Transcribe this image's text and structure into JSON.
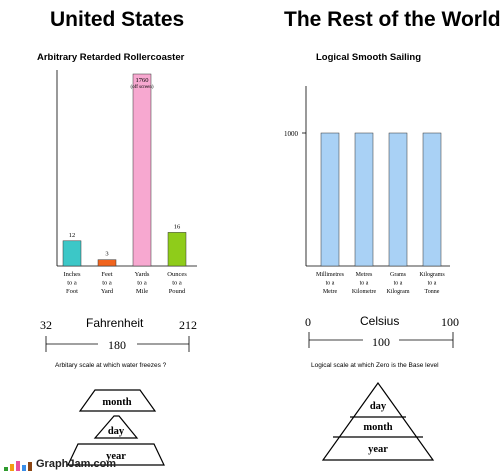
{
  "left": {
    "heading": "United States",
    "scale": {
      "name": "Fahrenheit",
      "low": "32",
      "high": "212",
      "range": "180",
      "caption": "Arbitary scale at which water freezes ?"
    },
    "pyramid": [
      "month",
      "day",
      "year"
    ]
  },
  "right": {
    "heading": "The Rest of the World",
    "scale": {
      "name": "Celsius",
      "low": "0",
      "high": "100",
      "range": "100",
      "caption": "Logical scale at which Zero is the Base level"
    },
    "pyramid": [
      "day",
      "month",
      "year"
    ]
  },
  "footer": {
    "site": "GraphJam.com",
    "colors": [
      "#2e9b2e",
      "#f39c12",
      "#e84d9b",
      "#3a8ee8",
      "#8b4513"
    ]
  },
  "chart_data": [
    {
      "type": "bar",
      "title": "Arbitrary Retarded Rollercoaster",
      "categories": [
        "Inches to a Foot",
        "Feet to a Yard",
        "Yards to a Mile",
        "Ounces to a Pound"
      ],
      "category_lines": [
        [
          "Inches",
          "to a",
          "Foot"
        ],
        [
          "Feet",
          "to a",
          "Yard"
        ],
        [
          "Yards",
          "to a",
          "Mile"
        ],
        [
          "Ounces",
          "to a",
          "Pound"
        ]
      ],
      "values": [
        12,
        3,
        1760,
        16
      ],
      "value_labels": [
        "12",
        "3",
        "1760",
        "16"
      ],
      "annotations": [
        "",
        "",
        "(off screen)",
        ""
      ],
      "colors": [
        "#3cc7c7",
        "#f0641e",
        "#f7a8d0",
        "#8fcc1a"
      ],
      "grid": false
    },
    {
      "type": "bar",
      "title": "Logical Smooth Sailing",
      "categories": [
        "Millimetres to a Metre",
        "Metres to a Kilometre",
        "Grams to a Kilogram",
        "Kilograms to a Tonne"
      ],
      "category_lines": [
        [
          "Millimetres",
          "to a",
          "Metre"
        ],
        [
          "Metres",
          "to a",
          "Kilometre"
        ],
        [
          "Grams",
          "to a",
          "Kilogram"
        ],
        [
          "Kilograms",
          "to a",
          "Tonne"
        ]
      ],
      "values": [
        1000,
        1000,
        1000,
        1000
      ],
      "y_tick": "1000",
      "colors": [
        "#a9d1f5",
        "#a9d1f5",
        "#a9d1f5",
        "#a9d1f5"
      ],
      "grid": false
    }
  ]
}
